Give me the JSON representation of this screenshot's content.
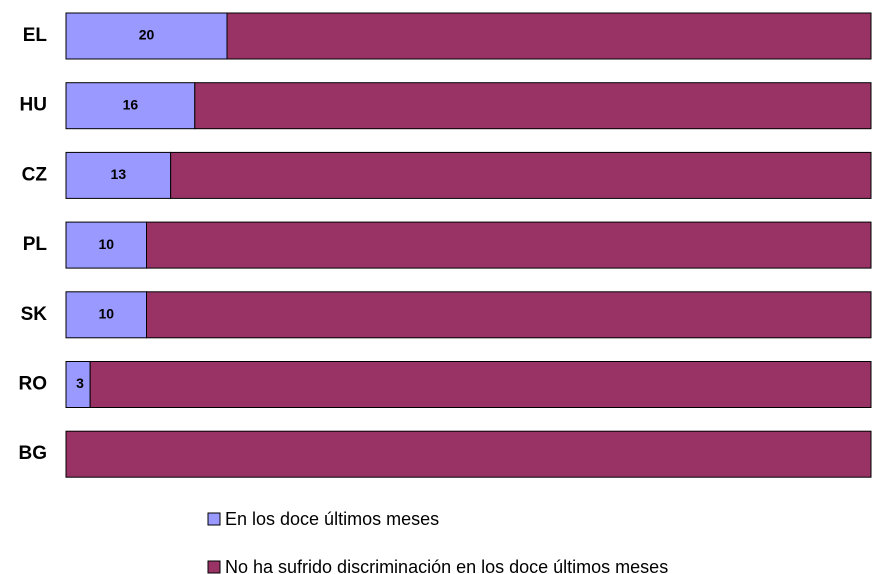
{
  "chart_data": {
    "type": "bar",
    "orientation": "horizontal",
    "stacked": true,
    "categories": [
      "EL",
      "HU",
      "CZ",
      "PL",
      "SK",
      "RO",
      "BG"
    ],
    "series": [
      {
        "name": "En los doce últimos meses",
        "color": "#9999ff",
        "values": [
          20,
          16,
          13,
          10,
          10,
          3,
          0
        ]
      },
      {
        "name": "No ha sufrido discriminación en los doce últimos meses",
        "color": "#993366",
        "values": [
          80,
          84,
          87,
          90,
          90,
          97,
          100
        ]
      }
    ],
    "xlim": [
      0,
      100
    ]
  }
}
